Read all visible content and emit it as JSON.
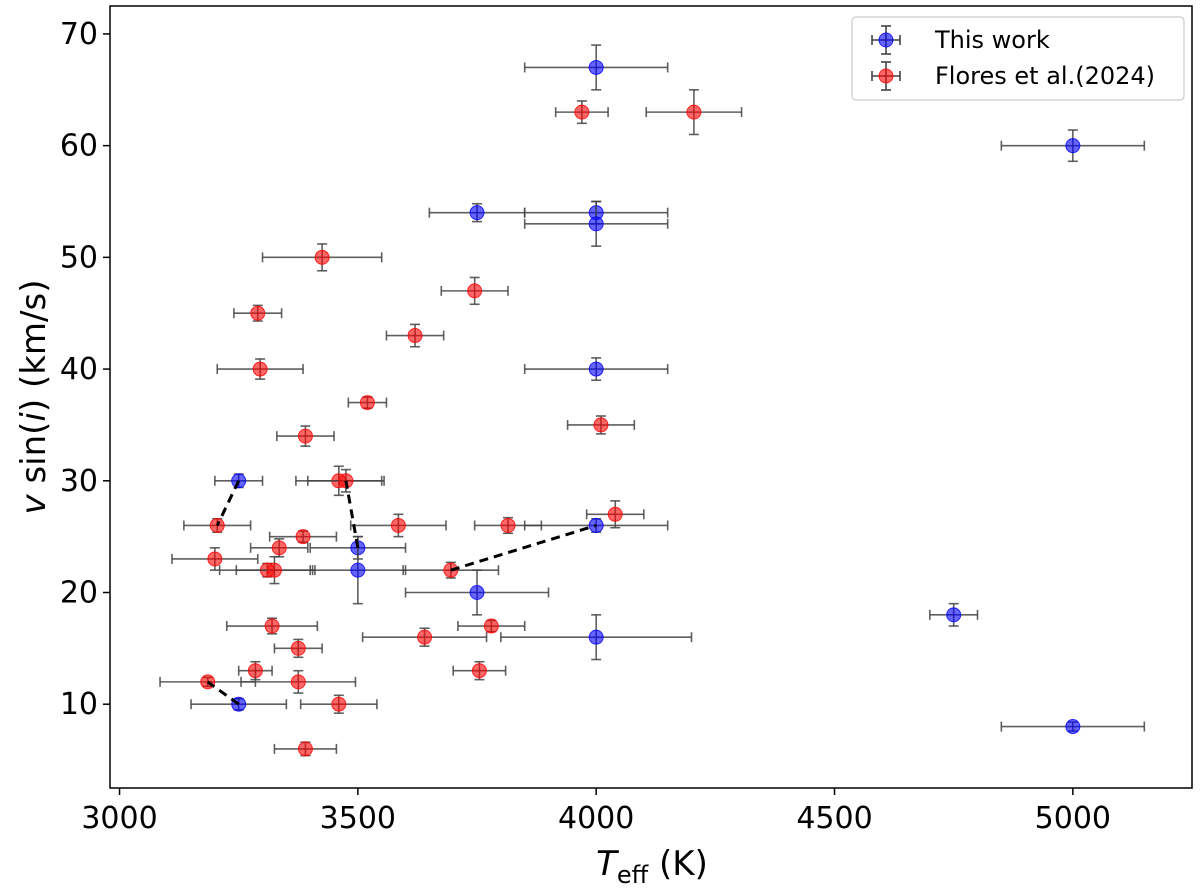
{
  "chart_data": {
    "type": "scatter",
    "xlabel": {
      "main": "T",
      "sub": "eff",
      "unit": " (K)"
    },
    "ylabel": {
      "prefix": "v",
      "middle": " sin(",
      "var": "i",
      "suffix": ") (km/s)"
    },
    "xlim": [
      2980,
      5250
    ],
    "ylim": [
      2.5,
      72.5
    ],
    "xticks": [
      3000,
      3500,
      4000,
      4500,
      5000
    ],
    "yticks": [
      10,
      20,
      30,
      40,
      50,
      60,
      70
    ],
    "grid": false,
    "legend_position": "top-right",
    "series": [
      {
        "name": "This work",
        "color": "#0000ff",
        "points": [
          {
            "x": 4000,
            "y": 67,
            "xerr": 150,
            "yerr": 2
          },
          {
            "x": 5000,
            "y": 60,
            "xerr": 150,
            "yerr": 1.4
          },
          {
            "x": 3750,
            "y": 54,
            "xerr": 100,
            "yerr": 0.8
          },
          {
            "x": 4000,
            "y": 54,
            "xerr": 150,
            "yerr": 1
          },
          {
            "x": 4000,
            "y": 53,
            "xerr": 150,
            "yerr": 2
          },
          {
            "x": 4000,
            "y": 40,
            "xerr": 150,
            "yerr": 1
          },
          {
            "x": 3250,
            "y": 30,
            "xerr": 50,
            "yerr": 0.6
          },
          {
            "x": 4000,
            "y": 26,
            "xerr": 150,
            "yerr": 0.6
          },
          {
            "x": 3500,
            "y": 24,
            "xerr": 100,
            "yerr": 1
          },
          {
            "x": 3500,
            "y": 22,
            "xerr": 100,
            "yerr": 3
          },
          {
            "x": 3750,
            "y": 20,
            "xerr": 150,
            "yerr": 2
          },
          {
            "x": 4750,
            "y": 18,
            "xerr": 50,
            "yerr": 1
          },
          {
            "x": 4000,
            "y": 16,
            "xerr": 200,
            "yerr": 2
          },
          {
            "x": 3250,
            "y": 10,
            "xerr": 100,
            "yerr": 0.5
          },
          {
            "x": 5000,
            "y": 8,
            "xerr": 150,
            "yerr": 0.4
          }
        ]
      },
      {
        "name": "Flores et al.(2024)",
        "color": "#ff0000",
        "points": [
          {
            "x": 3970,
            "y": 63,
            "xerr": 55,
            "yerr": 1
          },
          {
            "x": 4205,
            "y": 63,
            "xerr": 100,
            "yerr": 2
          },
          {
            "x": 3425,
            "y": 50,
            "xerr": 125,
            "yerr": 1.2
          },
          {
            "x": 3745,
            "y": 47,
            "xerr": 70,
            "yerr": 1.2
          },
          {
            "x": 3290,
            "y": 45,
            "xerr": 50,
            "yerr": 0.7
          },
          {
            "x": 3620,
            "y": 43,
            "xerr": 60,
            "yerr": 1
          },
          {
            "x": 3295,
            "y": 40,
            "xerr": 90,
            "yerr": 0.9
          },
          {
            "x": 3520,
            "y": 37,
            "xerr": 40,
            "yerr": 0.5
          },
          {
            "x": 4010,
            "y": 35,
            "xerr": 70,
            "yerr": 0.8
          },
          {
            "x": 3390,
            "y": 34,
            "xerr": 60,
            "yerr": 0.9
          },
          {
            "x": 3460,
            "y": 30,
            "xerr": 90,
            "yerr": 1.3
          },
          {
            "x": 3475,
            "y": 30,
            "xerr": 80,
            "yerr": 1
          },
          {
            "x": 3205,
            "y": 26,
            "xerr": 70,
            "yerr": 0.6
          },
          {
            "x": 3585,
            "y": 26,
            "xerr": 100,
            "yerr": 1
          },
          {
            "x": 3815,
            "y": 26,
            "xerr": 70,
            "yerr": 0.7
          },
          {
            "x": 4040,
            "y": 27,
            "xerr": 60,
            "yerr": 1.2
          },
          {
            "x": 3385,
            "y": 25,
            "xerr": 70,
            "yerr": 0.5
          },
          {
            "x": 3335,
            "y": 24,
            "xerr": 60,
            "yerr": 0.8
          },
          {
            "x": 3200,
            "y": 23,
            "xerr": 90,
            "yerr": 1
          },
          {
            "x": 3310,
            "y": 22,
            "xerr": 100,
            "yerr": 0.6
          },
          {
            "x": 3325,
            "y": 22,
            "xerr": 80,
            "yerr": 1.2
          },
          {
            "x": 3695,
            "y": 22,
            "xerr": 100,
            "yerr": 0.7
          },
          {
            "x": 3320,
            "y": 17,
            "xerr": 95,
            "yerr": 0.7
          },
          {
            "x": 3780,
            "y": 17,
            "xerr": 70,
            "yerr": 0.5
          },
          {
            "x": 3640,
            "y": 16,
            "xerr": 130,
            "yerr": 0.8
          },
          {
            "x": 3375,
            "y": 15,
            "xerr": 50,
            "yerr": 0.8
          },
          {
            "x": 3285,
            "y": 13,
            "xerr": 35,
            "yerr": 0.8
          },
          {
            "x": 3755,
            "y": 13,
            "xerr": 55,
            "yerr": 0.8
          },
          {
            "x": 3185,
            "y": 12,
            "xerr": 100,
            "yerr": 0.4
          },
          {
            "x": 3375,
            "y": 12,
            "xerr": 120,
            "yerr": 1
          },
          {
            "x": 3460,
            "y": 10,
            "xerr": 80,
            "yerr": 0.8
          },
          {
            "x": 3390,
            "y": 6,
            "xerr": 65,
            "yerr": 0.6
          }
        ]
      }
    ],
    "connections": [
      [
        [
          3250,
          30
        ],
        [
          3205,
          26
        ]
      ],
      [
        [
          3250,
          10
        ],
        [
          3185,
          12
        ]
      ],
      [
        [
          3500,
          24
        ],
        [
          3475,
          30
        ]
      ],
      [
        [
          3695,
          22
        ],
        [
          4000,
          26
        ]
      ]
    ]
  }
}
